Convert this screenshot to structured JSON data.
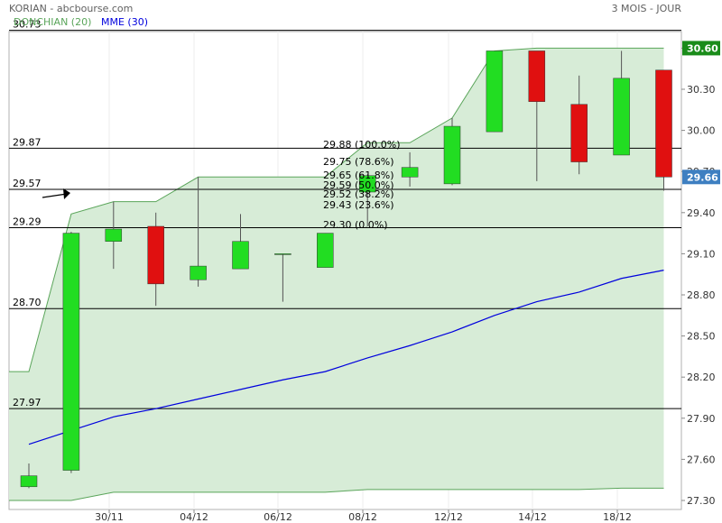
{
  "header": {
    "title": "KORIAN - abcbourse.com",
    "period": "3 MOIS - JOUR"
  },
  "legend": {
    "donchian_label": "DONCHIAN (20)",
    "mme_label": "MME (30)"
  },
  "colors": {
    "up": "#22dd22",
    "down": "#e01010",
    "donchian_line": "#5aa55a",
    "donchian_fill": "#d7ecd7",
    "mme_line": "#0000dd",
    "last_tag": "#1a8c1a",
    "price_tag": "#3e7fc1"
  },
  "chart_data": {
    "type": "candlestick",
    "x_labels": [
      "30/11",
      "04/12",
      "06/12",
      "08/12",
      "12/12",
      "14/12",
      "18/12"
    ],
    "ylim": [
      27.3,
      30.73
    ],
    "y_ticks": [
      "30.60",
      "30.30",
      "30.00",
      "29.70",
      "29.40",
      "29.10",
      "28.80",
      "28.50",
      "28.20",
      "27.90",
      "27.60",
      "27.30"
    ],
    "levels": [
      "30.73",
      "29.87",
      "29.57",
      "29.29",
      "28.70",
      "27.97"
    ],
    "last_price": "30.60",
    "current_price": "29.66",
    "fibonacci": [
      {
        "label": "29.88  (100.0%)",
        "value": 29.88
      },
      {
        "label": "29.75  (78.6%)",
        "value": 29.75
      },
      {
        "label": "29.65  (61.8%)",
        "value": 29.65
      },
      {
        "label": "29.59  (50.0%)",
        "value": 29.59
      },
      {
        "label": "29.52  (38.2%)",
        "value": 29.52
      },
      {
        "label": "29.43  (23.6%)",
        "value": 29.43
      },
      {
        "label": "29.30  (0.0%)",
        "value": 29.3
      }
    ],
    "candles": [
      {
        "o": 27.4,
        "h": 27.57,
        "l": 27.39,
        "c": 27.48
      },
      {
        "o": 27.52,
        "h": 29.26,
        "l": 27.5,
        "c": 29.25
      },
      {
        "o": 29.19,
        "h": 29.48,
        "l": 28.99,
        "c": 29.28
      },
      {
        "o": 29.3,
        "h": 29.4,
        "l": 28.72,
        "c": 28.88
      },
      {
        "o": 28.91,
        "h": 29.66,
        "l": 28.86,
        "c": 29.01
      },
      {
        "o": 28.99,
        "h": 29.39,
        "l": 28.99,
        "c": 29.19
      },
      {
        "o": 29.1,
        "h": 29.1,
        "l": 28.75,
        "c": 29.1
      },
      {
        "o": 29.0,
        "h": 29.25,
        "l": 29.0,
        "c": 29.25
      },
      {
        "o": 29.55,
        "h": 29.68,
        "l": 29.3,
        "c": 29.67
      },
      {
        "o": 29.66,
        "h": 29.84,
        "l": 29.59,
        "c": 29.73
      },
      {
        "o": 29.61,
        "h": 30.09,
        "l": 29.6,
        "c": 30.03
      },
      {
        "o": 29.99,
        "h": 30.58,
        "l": 29.99,
        "c": 30.58
      },
      {
        "o": 30.58,
        "h": 30.58,
        "l": 29.63,
        "c": 30.21
      },
      {
        "o": 30.19,
        "h": 30.4,
        "l": 29.68,
        "c": 29.77
      },
      {
        "o": 29.82,
        "h": 30.58,
        "l": 29.82,
        "c": 30.38
      },
      {
        "o": 30.44,
        "h": 30.44,
        "l": 29.56,
        "c": 29.66
      }
    ],
    "donchian_upper": [
      28.24,
      29.39,
      29.48,
      29.48,
      29.66,
      29.66,
      29.66,
      29.66,
      29.91,
      29.91,
      30.09,
      30.58,
      30.6,
      30.6,
      30.6,
      30.6
    ],
    "donchian_lower": [
      27.3,
      27.3,
      27.36,
      27.36,
      27.36,
      27.36,
      27.36,
      27.36,
      27.38,
      27.38,
      27.38,
      27.38,
      27.38,
      27.38,
      27.39,
      27.39
    ],
    "mme": [
      27.71,
      27.81,
      27.91,
      27.97,
      28.04,
      28.11,
      28.18,
      28.24,
      28.34,
      28.43,
      28.53,
      28.65,
      28.75,
      28.82,
      28.92,
      28.98
    ]
  }
}
